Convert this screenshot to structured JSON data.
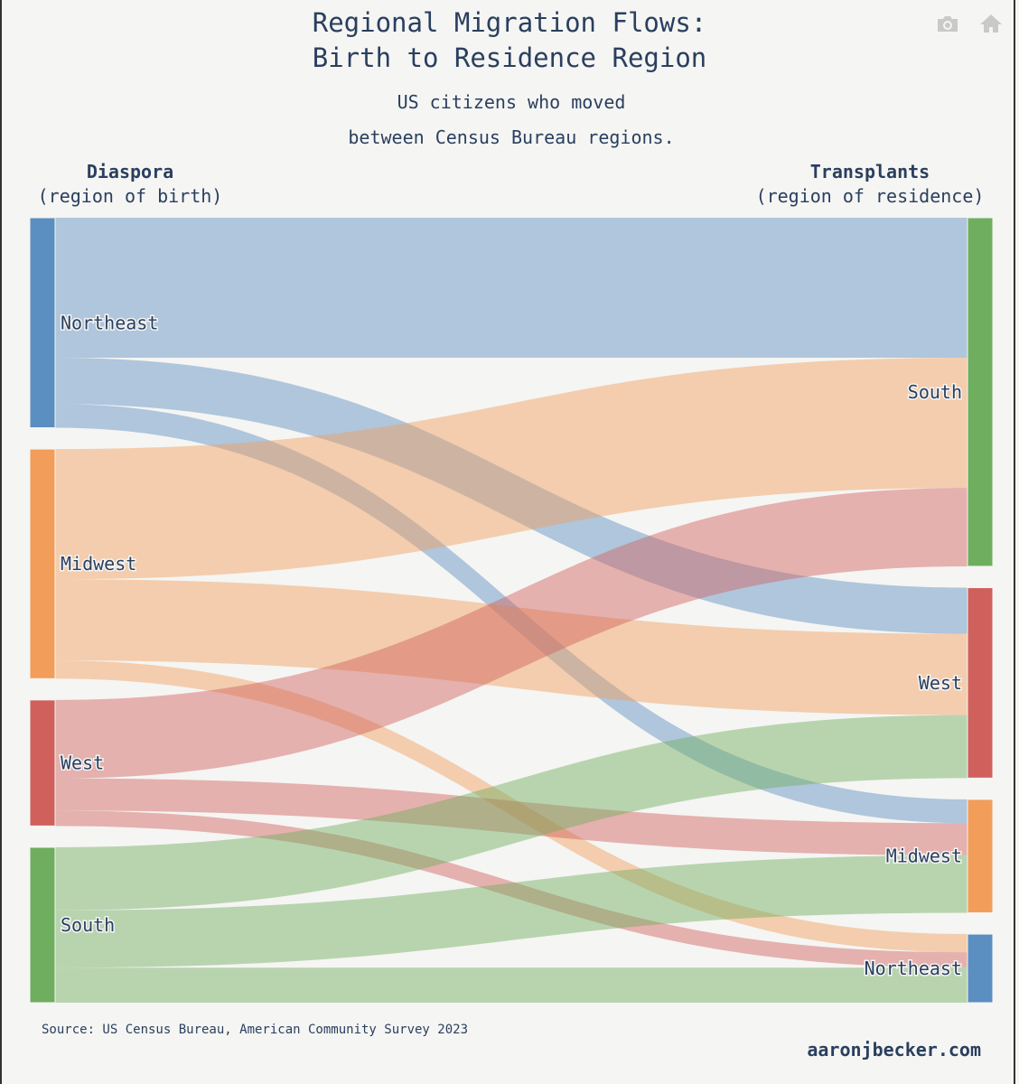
{
  "header": {
    "title_line1": "Regional Migration Flows:",
    "title_line2": "Birth to Residence Region",
    "subtitle_line1": "US citizens who moved",
    "subtitle_line2": "between Census Bureau regions."
  },
  "toolbar": {
    "camera_icon": "camera-icon",
    "home_icon": "home-icon"
  },
  "left_header": {
    "title": "Diaspora",
    "subtitle": "(region of birth)"
  },
  "right_header": {
    "title": "Transplants",
    "subtitle": "(region of residence)"
  },
  "footer": {
    "source": "Source: US Census Bureau, American Community Survey 2023",
    "credit": "aaronjbecker.com"
  },
  "chart_data": {
    "type": "sankey",
    "title": "Regional Migration Flows: Birth to Residence Region",
    "subtitle": "US citizens who moved between Census Bureau regions.",
    "source_nodes": [
      "Northeast",
      "Midwest",
      "West",
      "South"
    ],
    "target_nodes": [
      "South",
      "West",
      "Midwest",
      "Northeast"
    ],
    "colors": {
      "Northeast": "#5b8ec1",
      "Midwest": "#f29d5a",
      "West": "#d0605c",
      "South": "#6fae5e"
    },
    "flows": [
      {
        "source": "Northeast",
        "target": "South",
        "value": 100
      },
      {
        "source": "Northeast",
        "target": "West",
        "value": 33
      },
      {
        "source": "Northeast",
        "target": "Midwest",
        "value": 17
      },
      {
        "source": "Midwest",
        "target": "South",
        "value": 93
      },
      {
        "source": "Midwest",
        "target": "West",
        "value": 58
      },
      {
        "source": "Midwest",
        "target": "Northeast",
        "value": 13
      },
      {
        "source": "West",
        "target": "South",
        "value": 56
      },
      {
        "source": "West",
        "target": "Midwest",
        "value": 23
      },
      {
        "source": "West",
        "target": "Northeast",
        "value": 11
      },
      {
        "source": "South",
        "target": "West",
        "value": 45
      },
      {
        "source": "South",
        "target": "Midwest",
        "value": 41
      },
      {
        "source": "South",
        "target": "Northeast",
        "value": 25
      }
    ]
  }
}
